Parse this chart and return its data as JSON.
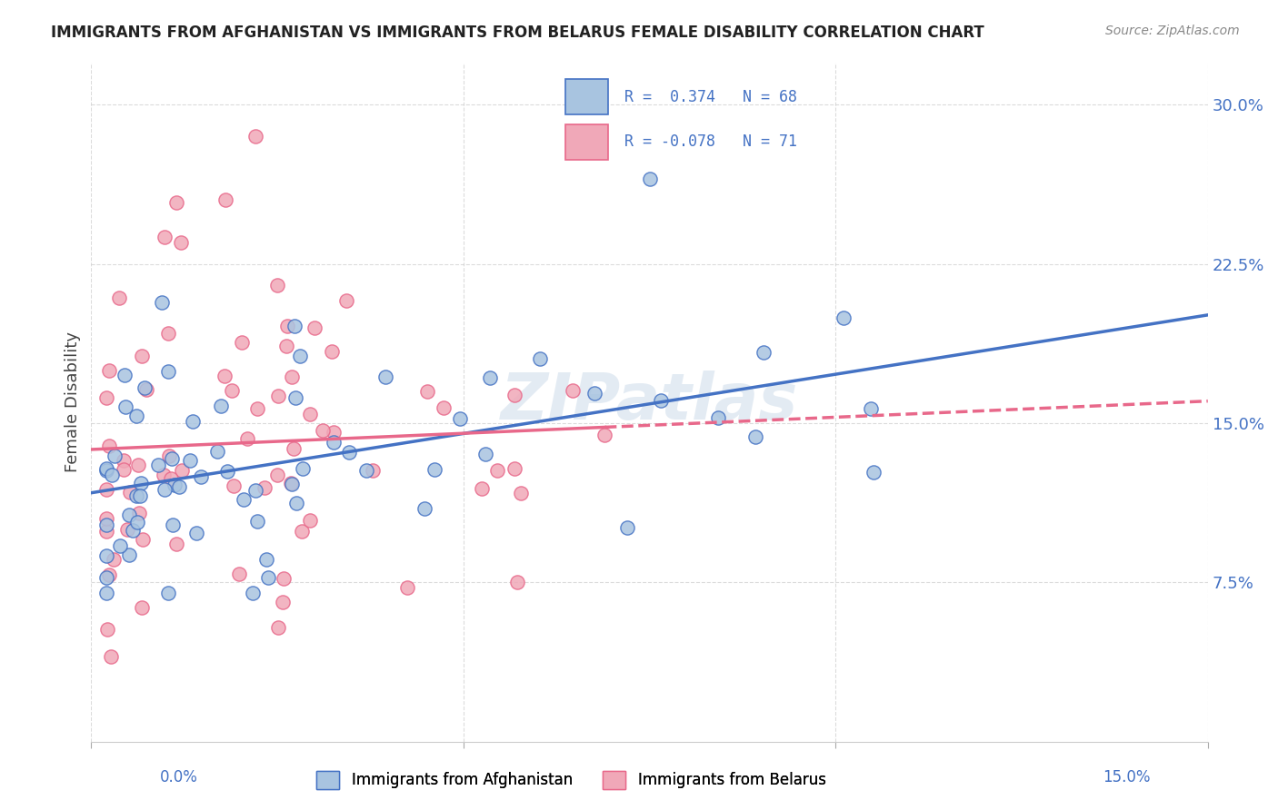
{
  "title": "IMMIGRANTS FROM AFGHANISTAN VS IMMIGRANTS FROM BELARUS FEMALE DISABILITY CORRELATION CHART",
  "source": "Source: ZipAtlas.com",
  "ylabel": "Female Disability",
  "xlim": [
    0.0,
    0.15
  ],
  "ylim": [
    0.0,
    0.32
  ],
  "watermark": "ZIPatlas",
  "color_afghanistan": "#a8c4e0",
  "color_belarus": "#f0a8b8",
  "color_line_afghanistan": "#4472c4",
  "color_line_belarus": "#e8688a",
  "ytick_vals": [
    0.075,
    0.15,
    0.225,
    0.3
  ],
  "ytick_labels": [
    "7.5%",
    "15.0%",
    "22.5%",
    "30.0%"
  ],
  "legend_r1_val": "0.374",
  "legend_r1_n": "68",
  "legend_r2_val": "-0.078",
  "legend_r2_n": "71"
}
